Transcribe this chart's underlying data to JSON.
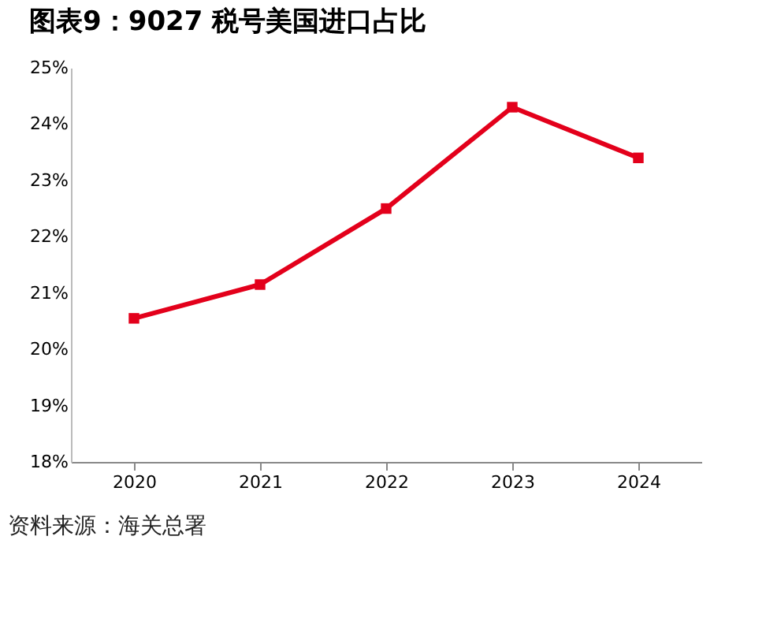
{
  "chart_data": {
    "type": "line",
    "title": "图表9：9027 税号美国进口占比",
    "categories": [
      "2020",
      "2021",
      "2022",
      "2023",
      "2024"
    ],
    "series": [
      {
        "color": "#e3001b",
        "values": [
          20.55,
          21.15,
          22.5,
          24.3,
          23.4
        ]
      }
    ],
    "ylim": [
      18,
      25
    ],
    "yticks": [
      {
        "value": 18,
        "label": "18%"
      },
      {
        "value": 19,
        "label": "19%"
      },
      {
        "value": 20,
        "label": "20%"
      },
      {
        "value": 21,
        "label": "21%"
      },
      {
        "value": 22,
        "label": "22%"
      },
      {
        "value": 23,
        "label": "23%"
      },
      {
        "value": 24,
        "label": "24%"
      },
      {
        "value": 25,
        "label": "25%"
      }
    ],
    "marker": "square",
    "line_style": "solid",
    "grid": false,
    "annotations": [
      "资料来源：海关总署"
    ]
  }
}
